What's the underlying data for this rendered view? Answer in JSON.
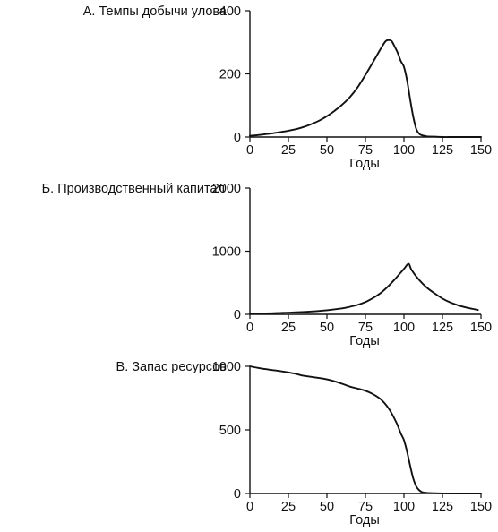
{
  "chart_data": [
    {
      "type": "line",
      "title": "А. Темпы добычи улова",
      "xlabel": "Годы",
      "ylabel": "",
      "xlim": [
        0,
        150
      ],
      "ylim": [
        0,
        400
      ],
      "xticks": [
        "0",
        "25",
        "50",
        "75",
        "100",
        "125",
        "150"
      ],
      "yticks": [
        "0",
        "200",
        "400"
      ],
      "grid": false,
      "series": [
        {
          "x": [
            0,
            5,
            10,
            15,
            20,
            25,
            30,
            35,
            40,
            45,
            50,
            55,
            60,
            65,
            70,
            75,
            80,
            85,
            88,
            90,
            92,
            94,
            96,
            98,
            100,
            102,
            104,
            106,
            108,
            110,
            112,
            115,
            120,
            125,
            130,
            140,
            150
          ],
          "y": [
            4,
            6,
            9,
            12,
            16,
            20,
            25,
            32,
            41,
            52,
            66,
            83,
            103,
            127,
            158,
            197,
            238,
            280,
            303,
            307,
            304,
            286,
            266,
            240,
            222,
            180,
            120,
            65,
            25,
            10,
            5,
            2,
            1,
            0,
            0,
            0,
            0
          ]
        }
      ]
    },
    {
      "type": "line",
      "title": "Б. Производственный капитал",
      "xlabel": "Годы",
      "ylabel": "",
      "xlim": [
        0,
        150
      ],
      "ylim": [
        0,
        2000
      ],
      "xticks": [
        "0",
        "25",
        "50",
        "75",
        "100",
        "125",
        "150"
      ],
      "yticks": [
        "0",
        "1000",
        "2000"
      ],
      "grid": false,
      "series": [
        {
          "x": [
            0,
            10,
            20,
            30,
            40,
            50,
            60,
            65,
            70,
            75,
            80,
            85,
            90,
            95,
            100,
            103,
            105,
            110,
            115,
            120,
            125,
            130,
            135,
            140,
            145,
            148
          ],
          "y": [
            10,
            15,
            22,
            32,
            45,
            65,
            95,
            120,
            150,
            195,
            260,
            340,
            450,
            580,
            720,
            800,
            700,
            540,
            420,
            330,
            250,
            190,
            145,
            110,
            85,
            70
          ]
        }
      ]
    },
    {
      "type": "line",
      "title": "В. Запас ресурсов",
      "xlabel": "Годы",
      "ylabel": "",
      "xlim": [
        0,
        150
      ],
      "ylim": [
        0,
        1000
      ],
      "xticks": [
        "0",
        "25",
        "50",
        "75",
        "100",
        "125",
        "150"
      ],
      "yticks": [
        "0",
        "500",
        "1000"
      ],
      "grid": false,
      "series": [
        {
          "x": [
            0,
            5,
            10,
            15,
            20,
            25,
            30,
            35,
            40,
            45,
            50,
            55,
            60,
            65,
            70,
            75,
            80,
            85,
            90,
            95,
            98,
            100,
            102,
            104,
            106,
            108,
            110,
            112,
            115,
            120,
            125,
            130,
            140,
            150
          ],
          "y": [
            1000,
            988,
            978,
            970,
            962,
            952,
            940,
            925,
            917,
            908,
            897,
            882,
            862,
            840,
            825,
            808,
            780,
            740,
            670,
            560,
            470,
            420,
            330,
            220,
            120,
            55,
            25,
            10,
            5,
            2,
            1,
            0,
            0,
            0
          ]
        }
      ]
    }
  ]
}
